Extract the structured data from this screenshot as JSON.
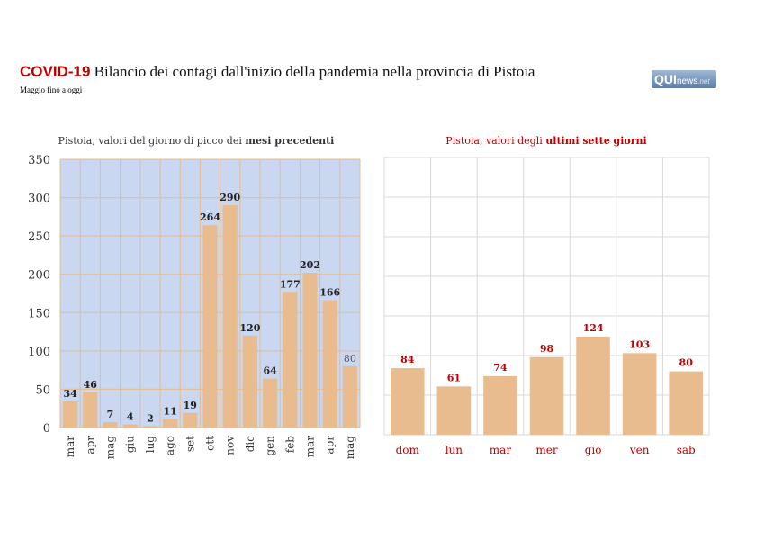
{
  "header": {
    "title_prefix": "COVID-19",
    "title": "Bilancio dei contagi dall'inizio della pandemia nella provincia di Pistoia",
    "subtitle": "Maggio fino a oggi",
    "logo": "QUInews.net",
    "logo_parts": [
      "QUI",
      "news",
      ".net"
    ]
  },
  "chart_data": [
    {
      "type": "bar",
      "title_plain": "Pistoia, valori del giorno di picco dei ",
      "title_bold": "mesi precedenti",
      "categories": [
        "mar",
        "apr",
        "mag",
        "giu",
        "lug",
        "ago",
        "set",
        "ott",
        "nov",
        "dic",
        "gen",
        "feb",
        "mar",
        "apr",
        "mag"
      ],
      "values": [
        34,
        46,
        7,
        4,
        2,
        11,
        19,
        264,
        290,
        120,
        64,
        177,
        202,
        166,
        80
      ],
      "yticks": [
        0,
        50,
        100,
        150,
        200,
        250,
        300,
        350
      ],
      "ylim": [
        0,
        350
      ],
      "grid": true,
      "colors": {
        "bar": "#e8bc8e",
        "bg": "#c9d7f0",
        "grid": "#e8bc8e"
      }
    },
    {
      "type": "bar",
      "title_plain": "Pistoia, valori degli ",
      "title_bold": "ultimi sette giorni",
      "categories": [
        "dom",
        "lun",
        "mar",
        "mer",
        "gio",
        "ven",
        "sab"
      ],
      "values": [
        84,
        61,
        74,
        98,
        124,
        103,
        80
      ],
      "ylim": [
        0,
        350
      ],
      "grid": true,
      "colors": {
        "bar": "#e8bc8e",
        "text": "#c00000",
        "grid": "#d9d9d9"
      }
    }
  ]
}
